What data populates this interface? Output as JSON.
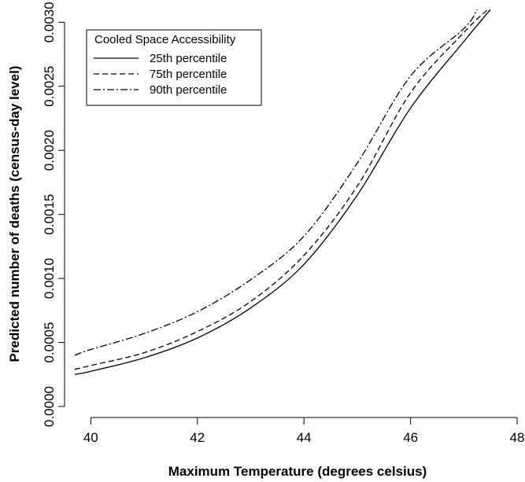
{
  "chart_data": {
    "type": "line",
    "title": "",
    "xlabel": "Maximum Temperature (degrees celsius)",
    "ylabel": "Predicted number of deaths (census-day level)",
    "xlim": [
      39.7,
      48
    ],
    "ylim": [
      0.0,
      0.0031
    ],
    "x_ticks": [
      40,
      42,
      44,
      46,
      48
    ],
    "x_tick_labels": [
      "40",
      "42",
      "44",
      "46",
      "48"
    ],
    "y_ticks": [
      0.0,
      0.0005,
      0.001,
      0.0015,
      0.002,
      0.0025,
      0.003
    ],
    "y_tick_labels": [
      "0.0000",
      "0.0005",
      "0.0010",
      "0.0015",
      "0.0020",
      "0.0025",
      "0.0030"
    ],
    "grid": false,
    "legend": {
      "title": "Cooled Space Accessibility",
      "placement": "top-left"
    },
    "series": [
      {
        "name": "25th percentile",
        "line_style": "solid",
        "x": [
          39.7,
          40,
          41,
          42,
          43,
          44,
          45,
          46,
          47,
          47.5
        ],
        "y": [
          0.00025,
          0.000275,
          0.00038,
          0.000535,
          0.00077,
          0.00111,
          0.00165,
          0.00233,
          0.00285,
          0.0031
        ]
      },
      {
        "name": "75th percentile",
        "line_style": "dashed",
        "x": [
          39.7,
          40,
          41,
          42,
          43,
          44,
          45,
          46,
          47,
          47.45
        ],
        "y": [
          0.00029,
          0.00032,
          0.00042,
          0.000585,
          0.00082,
          0.00118,
          0.00172,
          0.00245,
          0.00292,
          0.0031
        ]
      },
      {
        "name": "90th percentile",
        "line_style": "dotdash",
        "x": [
          39.7,
          40,
          41,
          42,
          43,
          44,
          45,
          46,
          47,
          47.25
        ],
        "y": [
          0.0004,
          0.000445,
          0.00057,
          0.00074,
          0.00099,
          0.00133,
          0.0019,
          0.00258,
          0.00295,
          0.0031
        ]
      }
    ]
  }
}
